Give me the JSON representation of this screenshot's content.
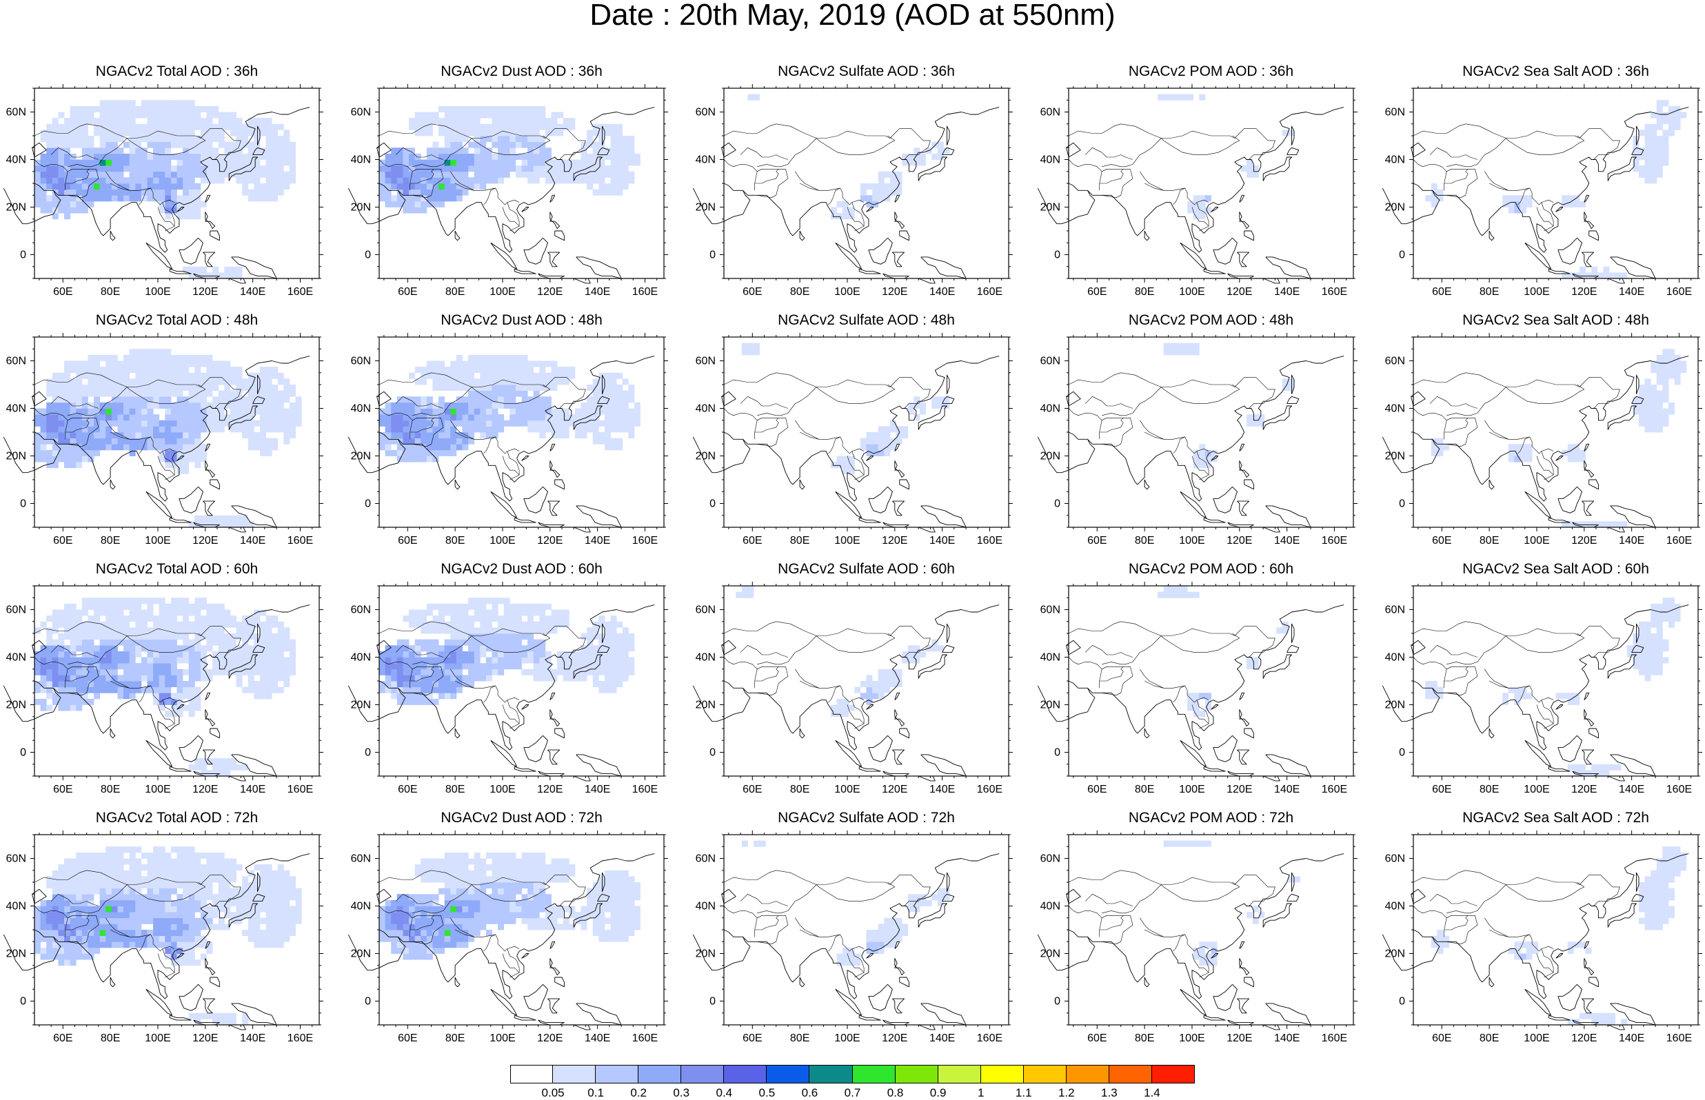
{
  "title": "Date : 20th May, 2019 (AOD at 550nm)",
  "panels": [
    {
      "title": "NGACv2 Total AOD : 36h",
      "variable": "total"
    },
    {
      "title": "NGACv2 Dust AOD : 36h",
      "variable": "dust"
    },
    {
      "title": "NGACv2 Sulfate AOD : 36h",
      "variable": "sulfate"
    },
    {
      "title": "NGACv2 POM AOD : 36h",
      "variable": "pom"
    },
    {
      "title": "NGACv2 Sea Salt AOD : 36h",
      "variable": "seasalt"
    },
    {
      "title": "NGACv2 Total AOD : 48h",
      "variable": "total"
    },
    {
      "title": "NGACv2 Dust AOD : 48h",
      "variable": "dust"
    },
    {
      "title": "NGACv2 Sulfate AOD : 48h",
      "variable": "sulfate"
    },
    {
      "title": "NGACv2 POM AOD : 48h",
      "variable": "pom"
    },
    {
      "title": "NGACv2 Sea Salt AOD : 48h",
      "variable": "seasalt"
    },
    {
      "title": "NGACv2 Total AOD : 60h",
      "variable": "total"
    },
    {
      "title": "NGACv2 Dust AOD : 60h",
      "variable": "dust"
    },
    {
      "title": "NGACv2 Sulfate AOD : 60h",
      "variable": "sulfate"
    },
    {
      "title": "NGACv2 POM AOD : 60h",
      "variable": "pom"
    },
    {
      "title": "NGACv2 Sea Salt AOD : 60h",
      "variable": "seasalt"
    },
    {
      "title": "NGACv2 Total AOD : 72h",
      "variable": "total"
    },
    {
      "title": "NGACv2 Dust AOD : 72h",
      "variable": "dust"
    },
    {
      "title": "NGACv2 Sulfate AOD : 72h",
      "variable": "sulfate"
    },
    {
      "title": "NGACv2 POM AOD : 72h",
      "variable": "pom"
    },
    {
      "title": "NGACv2 Sea Salt  AOD : 72h",
      "variable": "seasalt"
    }
  ],
  "axes": {
    "x_ticks": [
      "60E",
      "80E",
      "100E",
      "120E",
      "140E",
      "160E"
    ],
    "y_ticks": [
      "60N",
      "40N",
      "20N",
      "0"
    ]
  },
  "colorbar": {
    "labels": [
      "0.05",
      "0.1",
      "0.2",
      "0.3",
      "0.4",
      "0.5",
      "0.6",
      "0.7",
      "0.8",
      "0.9",
      "1",
      "1.1",
      "1.2",
      "1.3",
      "1.4"
    ],
    "colors": [
      "#ffffff",
      "#d6e1ff",
      "#b5c8ff",
      "#8eaaf9",
      "#7e8ff0",
      "#5a63e8",
      "#0a5ce8",
      "#0c8a8a",
      "#2ee62e",
      "#7fe60a",
      "#c8f53c",
      "#ffff00",
      "#ffc800",
      "#ff9600",
      "#ff6400",
      "#ff1e00"
    ]
  }
}
